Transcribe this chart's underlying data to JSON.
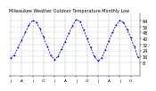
{
  "title": "Milwaukee Weather Outdoor Temperature Monthly Low",
  "values": [
    14,
    18,
    28,
    38,
    48,
    58,
    64,
    62,
    53,
    42,
    30,
    18,
    12,
    16,
    26,
    36,
    47,
    57,
    65,
    63,
    52,
    40,
    28,
    16,
    10,
    14,
    25,
    37,
    48,
    58,
    64,
    62,
    52,
    41,
    29,
    15
  ],
  "line_color": "#0000ff",
  "marker_color": "#0000cc",
  "bg_color": "#ffffff",
  "grid_color": "#999999",
  "ylim": [
    -10,
    74
  ],
  "yticks": [
    8,
    16,
    24,
    32,
    40,
    48,
    56,
    64
  ],
  "ytick_labels": [
    "8",
    "16",
    "24",
    "32",
    "40",
    "48",
    "56",
    "64"
  ],
  "ylabel_fontsize": 3.5,
  "xlabel_fontsize": 3.0,
  "title_fontsize": 3.5,
  "xtick_positions": [
    0,
    3,
    6,
    9,
    12,
    15,
    18,
    21,
    24,
    27,
    30,
    33
  ],
  "xtick_labels": [
    "J",
    "A",
    "J",
    "O",
    "J",
    "A",
    "J",
    "O",
    "J",
    "A",
    "J",
    "O"
  ]
}
